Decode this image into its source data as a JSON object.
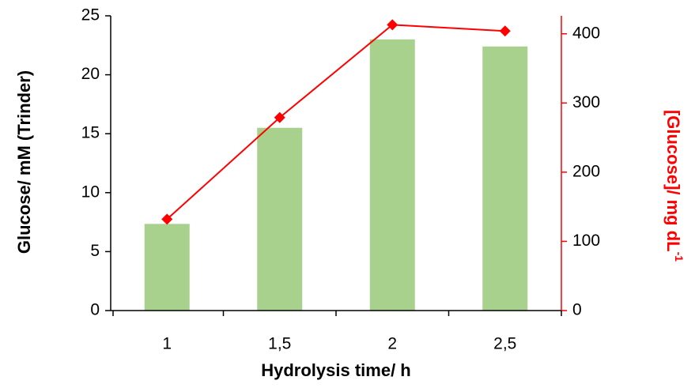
{
  "chart_data": {
    "type": "bar-line",
    "categories": [
      "1",
      "1,5",
      "2",
      "2,5"
    ],
    "xlabel": "Hydrolysis time/ h",
    "ylabel": "Glucose/ mM (Trinder)",
    "y2label": "[Glucose]/ mg dL",
    "y2label_superscript": "-1",
    "ylim": [
      0,
      25
    ],
    "yticks": [
      0,
      5,
      10,
      15,
      20,
      25
    ],
    "y2lim": [
      0,
      426
    ],
    "y2ticks": [
      0,
      100,
      200,
      300,
      400
    ],
    "y2color": "#ff0000",
    "series": [
      {
        "type": "bar",
        "color": "#a9d18e",
        "values": [
          7.35,
          15.5,
          23.0,
          22.4
        ]
      },
      {
        "type": "line",
        "axis": "y2",
        "color": "#ff0000",
        "values": [
          132,
          279,
          413,
          404
        ]
      }
    ]
  }
}
